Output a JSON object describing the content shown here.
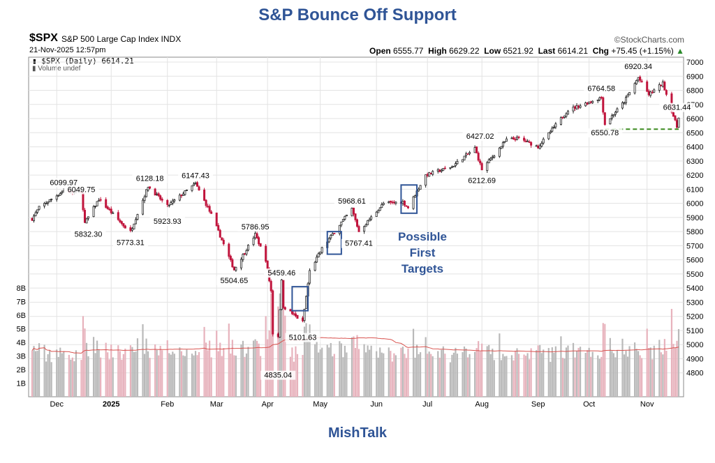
{
  "page": {
    "title": "S&P Bounce Off Support",
    "footer": "MishTalk"
  },
  "header": {
    "ticker": "$SPX",
    "name": "S&P 500 Large Cap Index INDX",
    "datetime": "21-Nov-2025 12:57pm",
    "brand": "©StockCharts.com",
    "open_label": "Open",
    "open": "6555.77",
    "high_label": "High",
    "high": "6629.22",
    "low_label": "Low",
    "low": "6521.92",
    "last_label": "Last",
    "last": "6614.21",
    "chg_label": "Chg",
    "chg": "+75.45 (+1.15%)",
    "legend_price": "$SPX (Daily) 6614.21",
    "legend_volume": "Volume undef"
  },
  "annotation": {
    "line1": "Possible",
    "line2": "First",
    "line3": "Targets"
  },
  "colors": {
    "up": "#222222",
    "down": "#c0143c",
    "vol_up": "#b9b9b9",
    "vol_down": "#e7b2bc",
    "box": "#2f5496",
    "support": "#3a8a1e",
    "grid": "#e3e3e3",
    "vol_ma": "#d9534f"
  },
  "chart_data": {
    "type": "candlestick",
    "title": "S&P Bounce Off Support",
    "x_start": "2024-11-18",
    "x_end": "2025-11-21",
    "ylim": [
      4750,
      7000
    ],
    "y_ticks": [
      4800,
      4900,
      5000,
      5100,
      5200,
      5300,
      5400,
      5500,
      5600,
      5700,
      5800,
      5900,
      6000,
      6100,
      6200,
      6300,
      6400,
      6500,
      6600,
      6700,
      6800,
      6900,
      7000
    ],
    "volume_ticks": [
      {
        "v": 1,
        "label": "1B"
      },
      {
        "v": 2,
        "label": "2B"
      },
      {
        "v": 3,
        "label": "3B"
      },
      {
        "v": 4,
        "label": "4B"
      },
      {
        "v": 5,
        "label": "5B"
      },
      {
        "v": 6,
        "label": "6B"
      },
      {
        "v": 7,
        "label": "7B"
      },
      {
        "v": 8,
        "label": "8B"
      }
    ],
    "volume_max": 9.0,
    "x_ticks": [
      {
        "label": "Dec",
        "date": "2024-12-02",
        "bold": false
      },
      {
        "label": "2025",
        "date": "2025-01-02",
        "bold": true
      },
      {
        "label": "Feb",
        "date": "2025-02-03",
        "bold": false
      },
      {
        "label": "Mar",
        "date": "2025-03-03",
        "bold": false
      },
      {
        "label": "Apr",
        "date": "2025-04-01",
        "bold": false
      },
      {
        "label": "May",
        "date": "2025-05-01",
        "bold": false
      },
      {
        "label": "Jun",
        "date": "2025-06-02",
        "bold": false
      },
      {
        "label": "Jul",
        "date": "2025-07-01",
        "bold": false
      },
      {
        "label": "Aug",
        "date": "2025-08-01",
        "bold": false
      },
      {
        "label": "Sep",
        "date": "2025-09-02",
        "bold": false
      },
      {
        "label": "Oct",
        "date": "2025-10-01",
        "bold": false
      },
      {
        "label": "Nov",
        "date": "2025-11-03",
        "bold": false
      }
    ],
    "price_path": [
      [
        "2024-11-18",
        5890
      ],
      [
        "2024-11-22",
        5970
      ],
      [
        "2024-12-06",
        6090
      ],
      [
        "2024-12-16",
        6070
      ],
      [
        "2024-12-18",
        5860
      ],
      [
        "2024-12-26",
        6030
      ],
      [
        "2025-01-10",
        5830
      ],
      [
        "2025-01-13",
        5800
      ],
      [
        "2025-01-23",
        6120
      ],
      [
        "2025-02-03",
        5980
      ],
      [
        "2025-02-19",
        6140
      ],
      [
        "2025-02-28",
        5920
      ],
      [
        "2025-03-13",
        5530
      ],
      [
        "2025-03-25",
        5780
      ],
      [
        "2025-03-31",
        5600
      ],
      [
        "2025-04-03",
        5380
      ],
      [
        "2025-04-04",
        5080
      ],
      [
        "2025-04-07",
        5060
      ],
      [
        "2025-04-09",
        5450
      ],
      [
        "2025-04-10",
        5270
      ],
      [
        "2025-04-21",
        5160
      ],
      [
        "2025-04-25",
        5520
      ],
      [
        "2025-05-02",
        5680
      ],
      [
        "2025-05-12",
        5850
      ],
      [
        "2025-05-19",
        5960
      ],
      [
        "2025-05-23",
        5800
      ],
      [
        "2025-06-06",
        6000
      ],
      [
        "2025-06-17",
        6010
      ],
      [
        "2025-06-20",
        5970
      ],
      [
        "2025-06-30",
        6200
      ],
      [
        "2025-07-15",
        6260
      ],
      [
        "2025-07-28",
        6390
      ],
      [
        "2025-08-01",
        6240
      ],
      [
        "2025-08-15",
        6450
      ],
      [
        "2025-08-22",
        6460
      ],
      [
        "2025-09-02",
        6400
      ],
      [
        "2025-09-19",
        6660
      ],
      [
        "2025-10-08",
        6750
      ],
      [
        "2025-10-10",
        6560
      ],
      [
        "2025-10-21",
        6720
      ],
      [
        "2025-10-29",
        6890
      ],
      [
        "2025-11-04",
        6770
      ],
      [
        "2025-11-12",
        6850
      ],
      [
        "2025-11-20",
        6540
      ],
      [
        "2025-11-21",
        6614
      ]
    ],
    "labels": [
      {
        "date": "2024-12-06",
        "value": 6099.97,
        "text": "6099.97",
        "pos": "above"
      },
      {
        "date": "2024-12-16",
        "value": 6049.75,
        "text": "6049.75",
        "pos": "above"
      },
      {
        "date": "2024-12-20",
        "value": 5832.3,
        "text": "5832.30",
        "pos": "below"
      },
      {
        "date": "2025-01-13",
        "value": 5773.31,
        "text": "5773.31",
        "pos": "below"
      },
      {
        "date": "2025-01-24",
        "value": 6128.18,
        "text": "6128.18",
        "pos": "above"
      },
      {
        "date": "2025-02-03",
        "value": 5923.93,
        "text": "5923.93",
        "pos": "below"
      },
      {
        "date": "2025-02-19",
        "value": 6147.43,
        "text": "6147.43",
        "pos": "above"
      },
      {
        "date": "2025-03-13",
        "value": 5504.65,
        "text": "5504.65",
        "pos": "below"
      },
      {
        "date": "2025-03-25",
        "value": 5786.95,
        "text": "5786.95",
        "pos": "above"
      },
      {
        "date": "2025-04-07",
        "value": 4835.04,
        "text": "4835.04",
        "pos": "below"
      },
      {
        "date": "2025-04-09",
        "value": 5459.46,
        "text": "5459.46",
        "pos": "above"
      },
      {
        "date": "2025-04-21",
        "value": 5101.63,
        "text": "5101.63",
        "pos": "below"
      },
      {
        "date": "2025-05-19",
        "value": 5968.61,
        "text": "5968.61",
        "pos": "above"
      },
      {
        "date": "2025-05-23",
        "value": 5767.41,
        "text": "5767.41",
        "pos": "below"
      },
      {
        "date": "2025-08-01",
        "value": 6212.69,
        "text": "6212.69",
        "pos": "below"
      },
      {
        "date": "2025-07-31",
        "value": 6427.02,
        "text": "6427.02",
        "pos": "above"
      },
      {
        "date": "2025-10-08",
        "value": 6764.58,
        "text": "6764.58",
        "pos": "above"
      },
      {
        "date": "2025-10-10",
        "value": 6550.78,
        "text": "6550.78",
        "pos": "below"
      },
      {
        "date": "2025-10-29",
        "value": 6920.34,
        "text": "6920.34",
        "pos": "above"
      },
      {
        "date": "2025-11-20",
        "value": 6631.44,
        "text": "6631.44",
        "pos": "above"
      }
    ],
    "target_boxes": [
      {
        "date_start": "2025-04-15",
        "date_end": "2025-04-24",
        "high": 5410,
        "low": 5240
      },
      {
        "date_start": "2025-05-05",
        "date_end": "2025-05-13",
        "high": 5800,
        "low": 5640
      },
      {
        "date_start": "2025-06-16",
        "date_end": "2025-06-25",
        "high": 6130,
        "low": 5930
      }
    ],
    "support_line": {
      "date_start": "2025-10-10",
      "date_end": "2025-11-21",
      "value": 6525
    }
  }
}
